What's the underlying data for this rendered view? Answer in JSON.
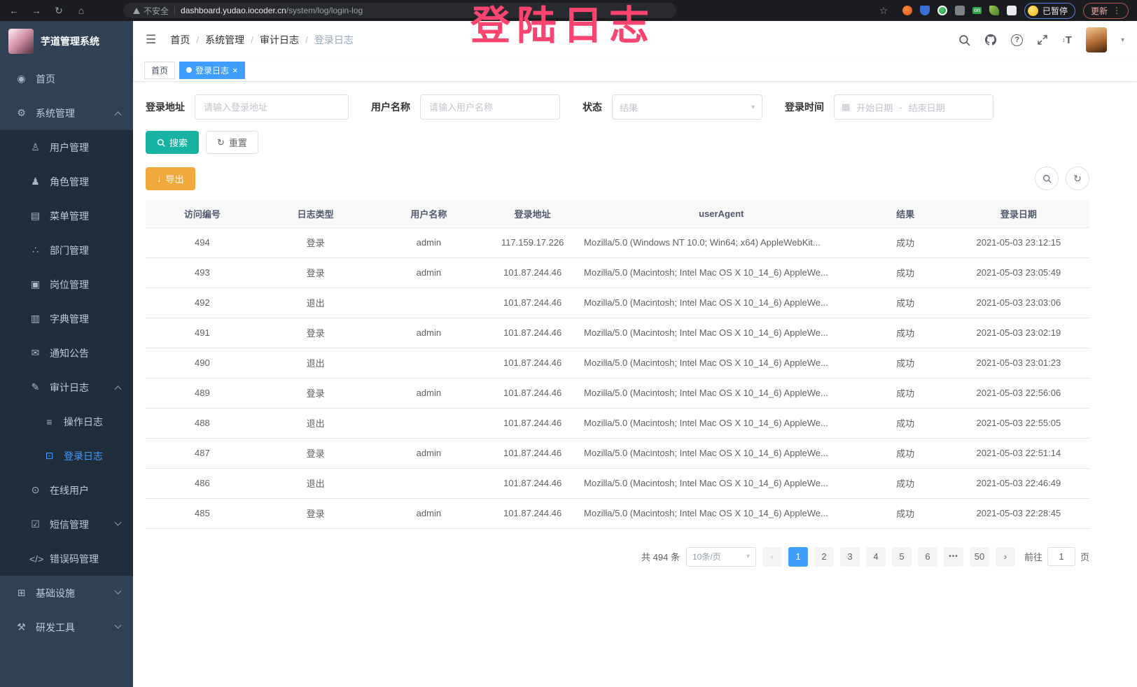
{
  "icons": {
    "back": "←",
    "forward": "→",
    "reload": "↻",
    "home": "⌂",
    "star": "☆",
    "menu_dots": "⋮",
    "hamburger": "☰",
    "refresh": "↻",
    "export_arrow": "↓",
    "calendar": "▦",
    "caret_down": "▾",
    "avatar_caret": "▾"
  },
  "browser": {
    "security_label": "不安全",
    "url_host": "dashboard.yudao.iocoder.cn",
    "url_path": "/system/log/login-log",
    "extensions_on_badge": "on",
    "paused_badge": "已暂停",
    "update_label": "更新"
  },
  "overlay": {
    "text": "登陆日志",
    "color": "#fb4570"
  },
  "sidebar": {
    "app_title": "芋道管理系统",
    "items": [
      {
        "label": "首页",
        "icon": "dashboard-icon",
        "glyph": "◉",
        "level": 0,
        "sub": false,
        "active": false,
        "arrow": ""
      },
      {
        "label": "系统管理",
        "icon": "gear-icon",
        "glyph": "⚙",
        "level": 0,
        "sub": false,
        "active": false,
        "arrow": "up"
      },
      {
        "label": "用户管理",
        "icon": "user-icon",
        "glyph": "♙",
        "level": 1,
        "sub": true,
        "active": false,
        "arrow": ""
      },
      {
        "label": "角色管理",
        "icon": "role-icon",
        "glyph": "♟",
        "level": 1,
        "sub": true,
        "active": false,
        "arrow": ""
      },
      {
        "label": "菜单管理",
        "icon": "menu-list-icon",
        "glyph": "▤",
        "level": 1,
        "sub": true,
        "active": false,
        "arrow": ""
      },
      {
        "label": "部门管理",
        "icon": "dept-tree-icon",
        "glyph": "∴",
        "level": 1,
        "sub": true,
        "active": false,
        "arrow": ""
      },
      {
        "label": "岗位管理",
        "icon": "post-badge-icon",
        "glyph": "▣",
        "level": 1,
        "sub": true,
        "active": false,
        "arrow": ""
      },
      {
        "label": "字典管理",
        "icon": "dictionary-icon",
        "glyph": "▥",
        "level": 1,
        "sub": true,
        "active": false,
        "arrow": ""
      },
      {
        "label": "通知公告",
        "icon": "notice-icon",
        "glyph": "✉",
        "level": 1,
        "sub": true,
        "active": false,
        "arrow": ""
      },
      {
        "label": "审计日志",
        "icon": "audit-log-icon",
        "glyph": "✎",
        "level": 1,
        "sub": true,
        "active": false,
        "arrow": "up"
      },
      {
        "label": "操作日志",
        "icon": "operation-log-icon",
        "glyph": "≡",
        "level": 2,
        "sub": true,
        "active": false,
        "arrow": ""
      },
      {
        "label": "登录日志",
        "icon": "login-log-icon",
        "glyph": "⊡",
        "level": 2,
        "sub": true,
        "active": true,
        "arrow": ""
      },
      {
        "label": "在线用户",
        "icon": "online-users-icon",
        "glyph": "⊙",
        "level": 1,
        "sub": true,
        "active": false,
        "arrow": ""
      },
      {
        "label": "短信管理",
        "icon": "sms-shield-icon",
        "glyph": "☑",
        "level": 1,
        "sub": true,
        "active": false,
        "arrow": "down"
      },
      {
        "label": "错误码管理",
        "icon": "error-code-icon",
        "glyph": "</>",
        "level": 1,
        "sub": true,
        "active": false,
        "arrow": ""
      },
      {
        "label": "基础设施",
        "icon": "infrastructure-icon",
        "glyph": "⊞",
        "level": 0,
        "sub": false,
        "active": false,
        "arrow": "down"
      },
      {
        "label": "研发工具",
        "icon": "dev-tools-icon",
        "glyph": "⚒",
        "level": 0,
        "sub": false,
        "active": false,
        "arrow": "down"
      }
    ]
  },
  "header": {
    "breadcrumb": [
      "首页",
      "系统管理",
      "审计日志",
      "登录日志"
    ],
    "separator": "/"
  },
  "tags": [
    {
      "label": "首页"
    },
    {
      "label": "登录日志",
      "close_icon": "×"
    }
  ],
  "filters": {
    "login_address_label": "登录地址",
    "login_address_placeholder": "请输入登录地址",
    "username_label": "用户名称",
    "username_placeholder": "请输入用户名称",
    "status_label": "状态",
    "status_placeholder": "结果",
    "login_time_label": "登录时间",
    "start_placeholder": "开始日期",
    "range_separator": "-",
    "end_placeholder": "结束日期",
    "search_label": "搜索",
    "reset_label": "重置"
  },
  "toolbar": {
    "export_label": "导出"
  },
  "table": {
    "columns": [
      "访问编号",
      "日志类型",
      "用户名称",
      "登录地址",
      "userAgent",
      "结果",
      "登录日期"
    ],
    "rows": [
      {
        "id": "494",
        "type": "登录",
        "user": "admin",
        "ip": "117.159.17.226",
        "agent": "Mozilla/5.0 (Windows NT 10.0; Win64; x64) AppleWebKit...",
        "result": "成功",
        "date": "2021-05-03 23:12:15"
      },
      {
        "id": "493",
        "type": "登录",
        "user": "admin",
        "ip": "101.87.244.46",
        "agent": "Mozilla/5.0 (Macintosh; Intel Mac OS X 10_14_6) AppleWe...",
        "result": "成功",
        "date": "2021-05-03 23:05:49"
      },
      {
        "id": "492",
        "type": "退出",
        "user": "",
        "ip": "101.87.244.46",
        "agent": "Mozilla/5.0 (Macintosh; Intel Mac OS X 10_14_6) AppleWe...",
        "result": "成功",
        "date": "2021-05-03 23:03:06"
      },
      {
        "id": "491",
        "type": "登录",
        "user": "admin",
        "ip": "101.87.244.46",
        "agent": "Mozilla/5.0 (Macintosh; Intel Mac OS X 10_14_6) AppleWe...",
        "result": "成功",
        "date": "2021-05-03 23:02:19"
      },
      {
        "id": "490",
        "type": "退出",
        "user": "",
        "ip": "101.87.244.46",
        "agent": "Mozilla/5.0 (Macintosh; Intel Mac OS X 10_14_6) AppleWe...",
        "result": "成功",
        "date": "2021-05-03 23:01:23"
      },
      {
        "id": "489",
        "type": "登录",
        "user": "admin",
        "ip": "101.87.244.46",
        "agent": "Mozilla/5.0 (Macintosh; Intel Mac OS X 10_14_6) AppleWe...",
        "result": "成功",
        "date": "2021-05-03 22:56:06"
      },
      {
        "id": "488",
        "type": "退出",
        "user": "",
        "ip": "101.87.244.46",
        "agent": "Mozilla/5.0 (Macintosh; Intel Mac OS X 10_14_6) AppleWe...",
        "result": "成功",
        "date": "2021-05-03 22:55:05"
      },
      {
        "id": "487",
        "type": "登录",
        "user": "admin",
        "ip": "101.87.244.46",
        "agent": "Mozilla/5.0 (Macintosh; Intel Mac OS X 10_14_6) AppleWe...",
        "result": "成功",
        "date": "2021-05-03 22:51:14"
      },
      {
        "id": "486",
        "type": "退出",
        "user": "",
        "ip": "101.87.244.46",
        "agent": "Mozilla/5.0 (Macintosh; Intel Mac OS X 10_14_6) AppleWe...",
        "result": "成功",
        "date": "2021-05-03 22:46:49"
      },
      {
        "id": "485",
        "type": "登录",
        "user": "admin",
        "ip": "101.87.244.46",
        "agent": "Mozilla/5.0 (Macintosh; Intel Mac OS X 10_14_6) AppleWe...",
        "result": "成功",
        "date": "2021-05-03 22:28:45"
      }
    ]
  },
  "pagination": {
    "total_text": "共 494 条",
    "page_size": "10条/页",
    "prev_icon": "‹",
    "next_icon": "›",
    "pages": [
      "1",
      "2",
      "3",
      "4",
      "5",
      "6",
      "•••",
      "50"
    ],
    "active_page": "1",
    "goto_label": "前往",
    "goto_value": "1",
    "goto_suffix": "页"
  },
  "colors": {
    "accent_blue": "#409eff",
    "teal": "#17b3a3",
    "orange": "#f2a93c",
    "sidebar_bg": "#304156",
    "submenu_bg": "#1f2d3d",
    "annotation_pink": "#fb4570"
  }
}
